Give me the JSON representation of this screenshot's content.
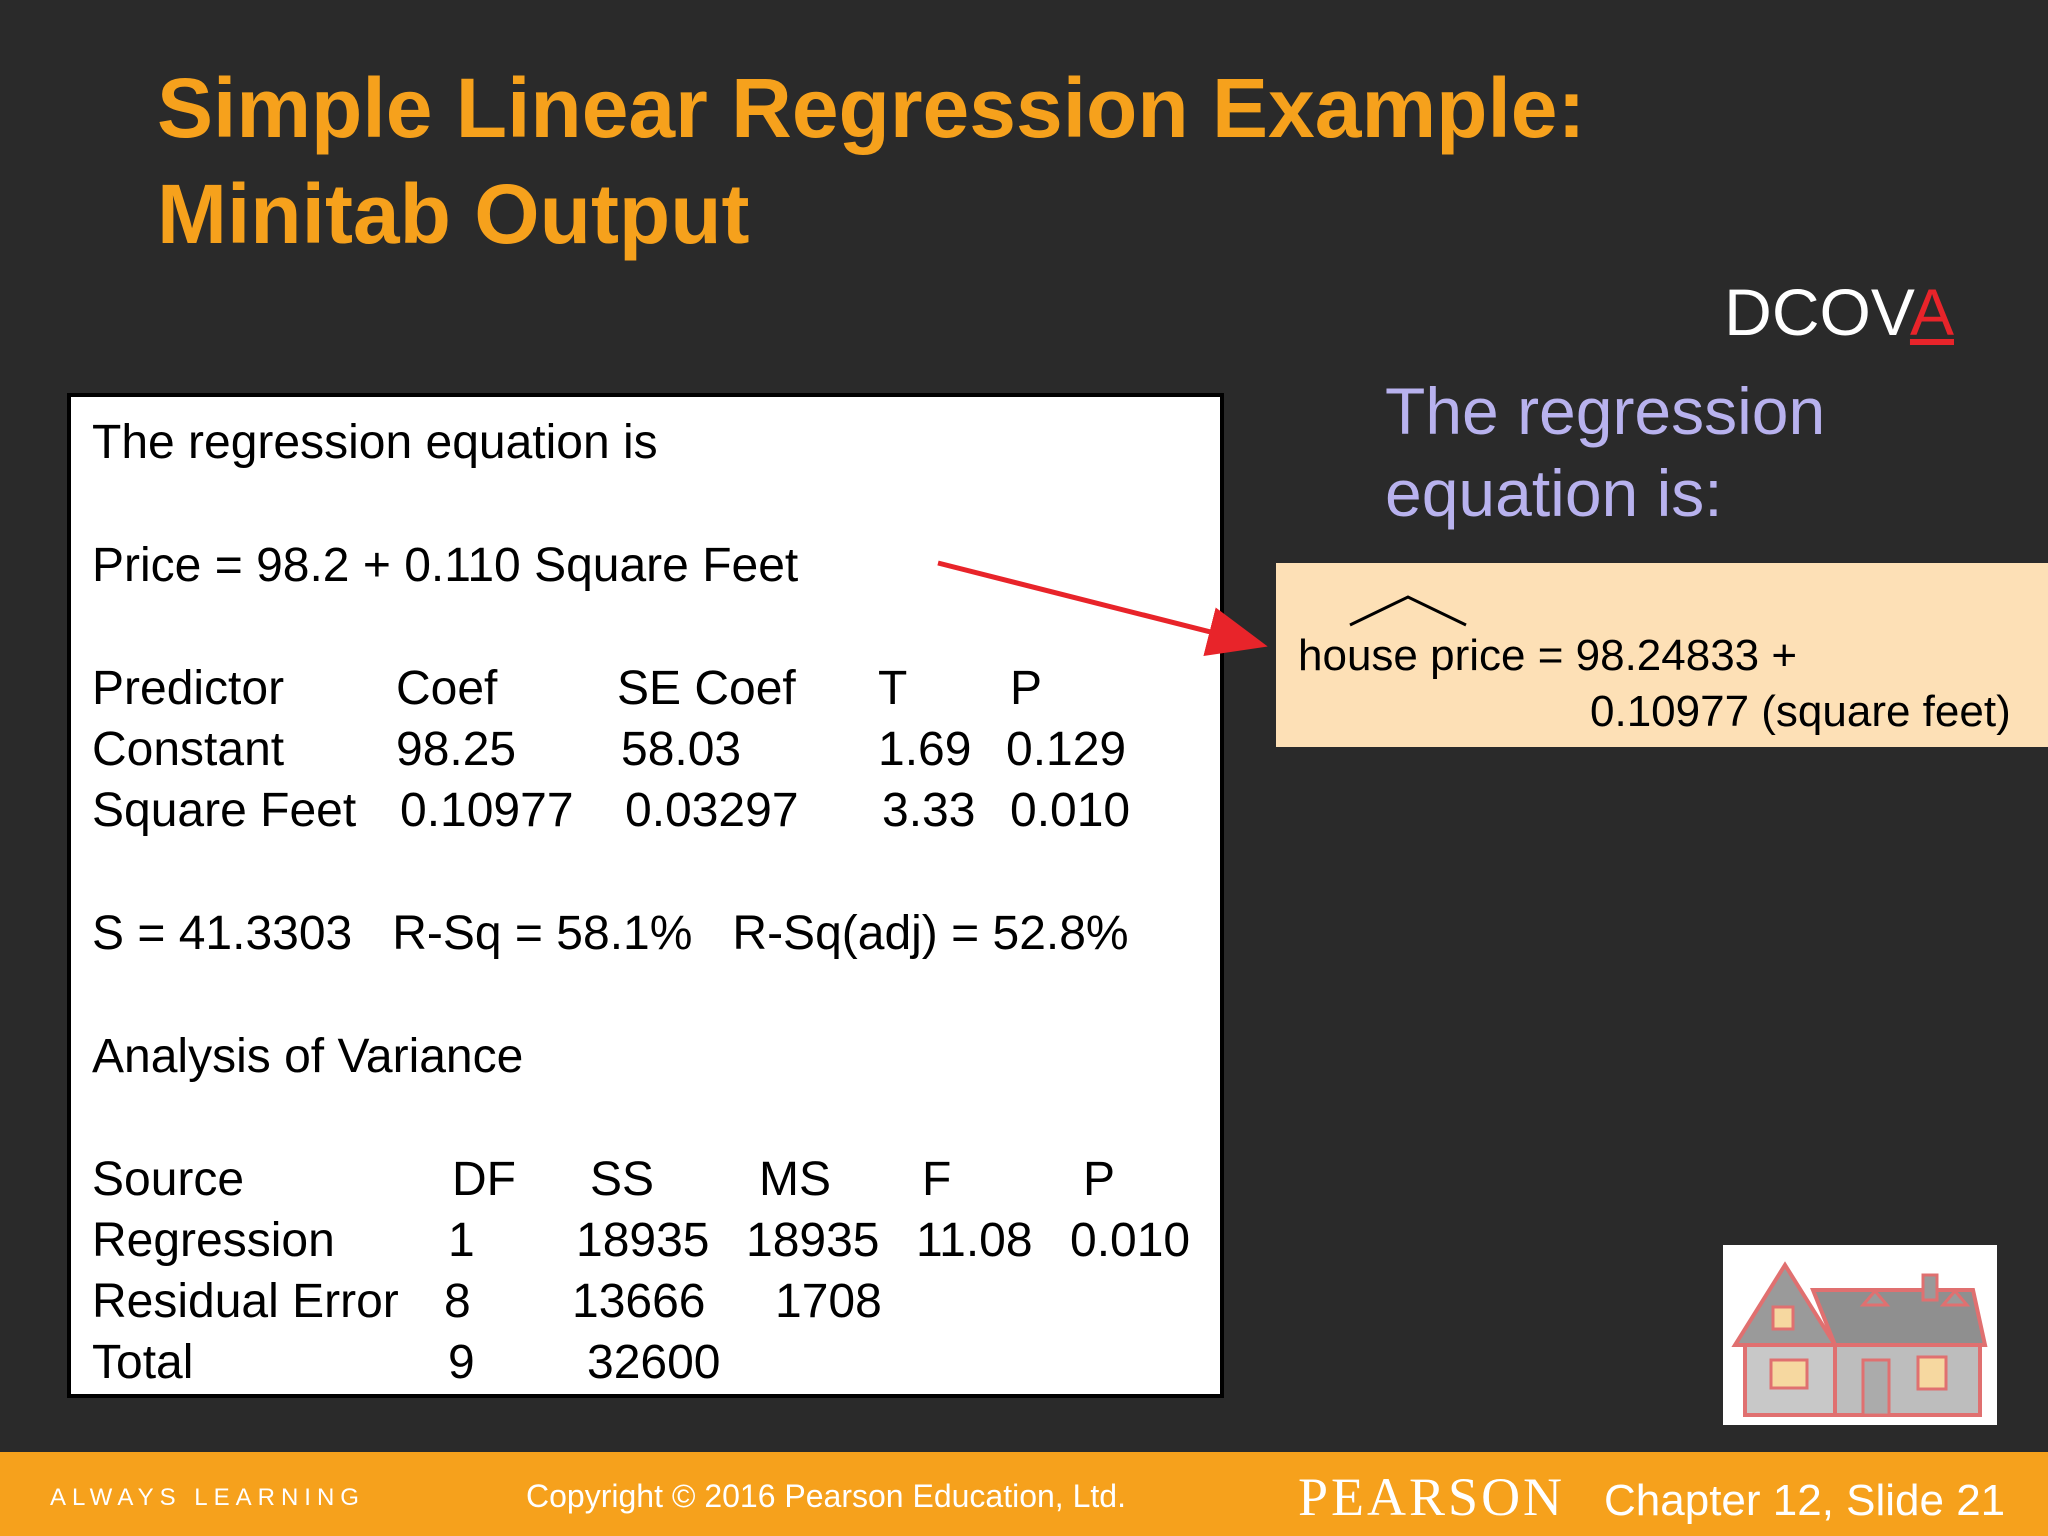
{
  "slide": {
    "title_line1": "Simple Linear Regression Example:",
    "title_line2": "Minitab Output",
    "dcova_prefix": "DCOV",
    "dcova_highlight": "A"
  },
  "minitab": {
    "heading": "The regression equation is",
    "equation": "Price = 98.2 + 0.110 Square Feet",
    "coef_headers": [
      "Predictor",
      "Coef",
      "SE Coef",
      "T",
      "P"
    ],
    "coef_rows": [
      [
        "Constant",
        "98.25",
        "58.03",
        "1.69",
        "0.129"
      ],
      [
        "Square Feet",
        "0.10977",
        "0.03297",
        "3.33",
        "0.010"
      ]
    ],
    "fit_stats": "S = 41.3303   R-Sq = 58.1%   R-Sq(adj) = 52.8%",
    "anova_title": "Analysis of Variance",
    "anova_headers": [
      "Source",
      "DF",
      "SS",
      "MS",
      "F",
      "P"
    ],
    "anova_rows": [
      [
        "Regression",
        "1",
        "18935",
        "18935",
        "11.08",
        "0.010"
      ],
      [
        "Residual Error",
        "8",
        "13666",
        "1708",
        "",
        ""
      ],
      [
        "Total",
        "9",
        "32600",
        "",
        "",
        ""
      ]
    ]
  },
  "side": {
    "caption_line1": "The regression",
    "caption_line2": "equation is:",
    "eq_line1": "house price = 98.24833 +",
    "eq_line2": "0.10977 (square feet)"
  },
  "footer": {
    "tagline": "ALWAYS LEARNING",
    "copyright": "Copyright © 2016 Pearson Education, Ltd.",
    "brand": "PEARSON",
    "slide_label": "Chapter 12, Slide 21"
  },
  "colors": {
    "background": "#2a2a2a",
    "title": "#f6a11c",
    "caption": "#b8b2ee",
    "highlight_box": "#fde0b6",
    "arrow": "#e8242a",
    "footer": "#f6a11c"
  },
  "icons": {
    "house": "house-illustration-icon"
  }
}
